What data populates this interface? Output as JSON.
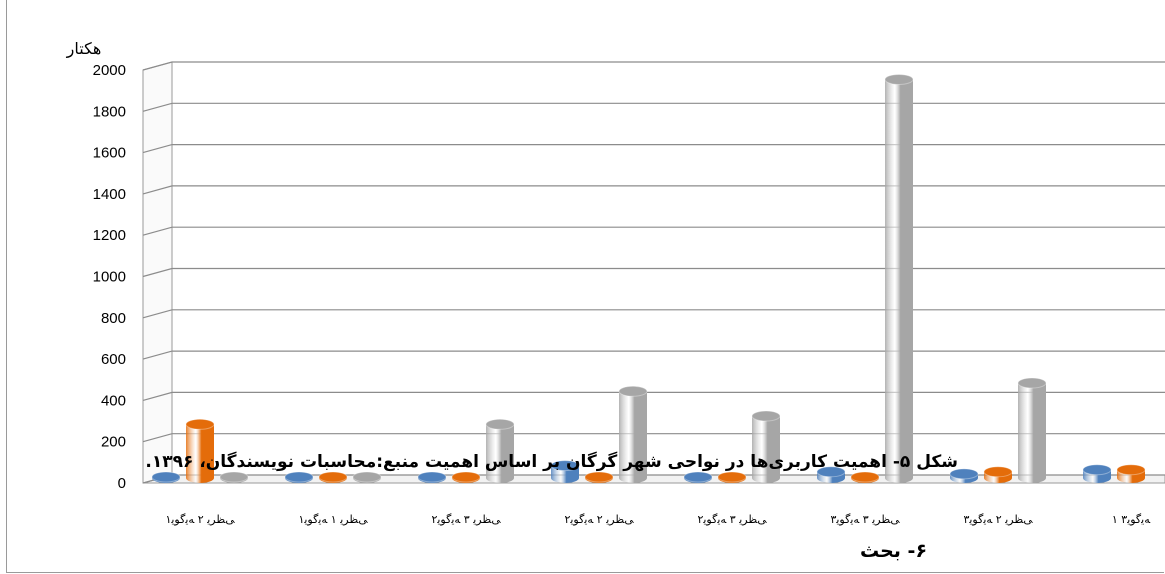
{
  "chart_data": {
    "type": "bar",
    "ylabel": "هکتار",
    "ylim": [
      0,
      2000
    ],
    "yticks": [
      "0",
      "200",
      "400",
      "600",
      "800",
      "1000",
      "1200",
      "1400",
      "1600",
      "1800",
      "2000"
    ],
    "grid": true,
    "categories": [
      "ﻰﻈﺮﯾ ۲ ﻪﯾﮔﻮﯾ۱",
      "ﻰﻈﺮﯾ ۱ ﻪﯾﮔﻮﯾ۱",
      "ﻰﻈﺮﯾ ۳ ﻪﯾﮔﻮﯾ۲",
      "ﻰﻈﺮﯾ ۲ ﻪﯾﮔﻮﯾ۲",
      "ﻰﻈﺮﯾ ۳ ﻪﯾﮔﻮﯾ۲",
      "ﻰﻈﺮﯾ ۳ ﻪﯾﮔﻮﯾ۳",
      "ﻰﻈﺮﯾ ۲ ﻪﯾﮔﻮﯾ۳",
      "۱ ﻪﯾﮔﻮﯾ۳"
    ],
    "series": [
      {
        "color": "#4f81bd",
        "values": [
          5,
          5,
          5,
          60,
          5,
          30,
          20,
          40
        ]
      },
      {
        "color": "#e46c0a",
        "values": [
          260,
          5,
          5,
          5,
          5,
          5,
          30,
          40
        ]
      },
      {
        "color": "#a6a6a6",
        "values": [
          5,
          5,
          260,
          420,
          300,
          1930,
          460,
          0
        ]
      }
    ],
    "caption": "شکل ۵- اهمیت کاربری‌ها در نواحی شهر گرگان بر اساس اهمیت منبع:محاسبات نویسندگان، ۱۳۹۶."
  },
  "section_heading": "۶- بحث"
}
